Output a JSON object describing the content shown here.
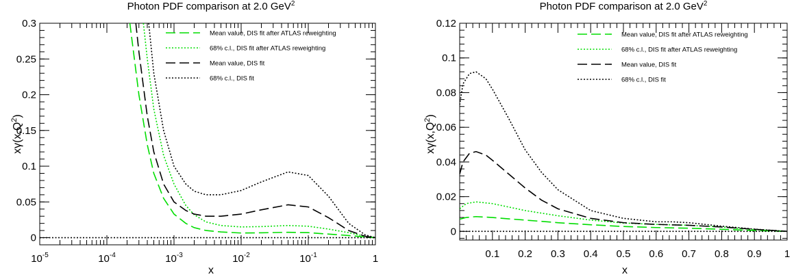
{
  "chart_data": [
    {
      "type": "line",
      "title": "Photon PDF comparison at 2.0 GeV",
      "title_superscript": "2",
      "xlabel": "x",
      "ylabel": "xγ(x,Q",
      "ylabel_superscript": "2",
      "ylabel_suffix": ")",
      "x_scale": "log",
      "xlim": [
        1e-05,
        1
      ],
      "ylim": [
        -0.01,
        0.3
      ],
      "x_ticks": [
        1e-05,
        0.0001,
        0.001,
        0.01,
        0.1,
        1
      ],
      "x_tick_base": [
        "10",
        "10",
        "10",
        "10",
        "10",
        "1"
      ],
      "x_tick_exp": [
        "-5",
        "-4",
        "-3",
        "-2",
        "-1",
        ""
      ],
      "y_ticks": [
        0,
        0.05,
        0.1,
        0.15,
        0.2,
        0.25,
        0.3
      ],
      "y_tick_labels": [
        "0",
        "0.05",
        "0.1",
        "0.15",
        "0.2",
        "0.25",
        "0.3"
      ],
      "grid": false,
      "legend_position": "top-right",
      "series": [
        {
          "name": "Mean value, DIS fit after ATLAS reweighting",
          "color": "#00dd00",
          "style": "long-dash",
          "x": [
            0.00022,
            0.0003,
            0.0004,
            0.0005,
            0.0007,
            0.001,
            0.0015,
            0.002,
            0.003,
            0.005,
            0.01,
            0.02,
            0.05,
            0.1,
            0.2,
            0.4,
            0.7,
            1
          ],
          "y": [
            0.3,
            0.2,
            0.13,
            0.09,
            0.055,
            0.033,
            0.02,
            0.014,
            0.01,
            0.008,
            0.0065,
            0.0068,
            0.0075,
            0.007,
            0.005,
            0.003,
            0.001,
            0
          ]
        },
        {
          "name": "68% c.l., DIS fit after ATLAS reweighting",
          "color": "#00dd00",
          "style": "dotted",
          "x": [
            0.00035,
            0.0004,
            0.0005,
            0.0007,
            0.001,
            0.0015,
            0.002,
            0.003,
            0.005,
            0.01,
            0.02,
            0.05,
            0.1,
            0.2,
            0.4,
            0.7,
            1
          ],
          "y": [
            0.3,
            0.25,
            0.18,
            0.115,
            0.075,
            0.045,
            0.032,
            0.022,
            0.017,
            0.015,
            0.0155,
            0.017,
            0.016,
            0.012,
            0.007,
            0.002,
            0
          ]
        },
        {
          "name": "Mean value, DIS fit",
          "color": "#000000",
          "style": "long-dash",
          "x": [
            0.00027,
            0.0003,
            0.0004,
            0.0005,
            0.0007,
            0.001,
            0.0015,
            0.002,
            0.003,
            0.005,
            0.01,
            0.02,
            0.05,
            0.1,
            0.2,
            0.4,
            0.7,
            1
          ],
          "y": [
            0.3,
            0.26,
            0.17,
            0.12,
            0.075,
            0.05,
            0.038,
            0.033,
            0.03,
            0.03,
            0.033,
            0.039,
            0.046,
            0.043,
            0.028,
            0.01,
            0.002,
            0
          ]
        },
        {
          "name": "68% c.l., DIS fit",
          "color": "#000000",
          "style": "dotted",
          "x": [
            0.00042,
            0.0005,
            0.0007,
            0.001,
            0.0015,
            0.002,
            0.003,
            0.005,
            0.01,
            0.02,
            0.05,
            0.1,
            0.2,
            0.4,
            0.7,
            1
          ],
          "y": [
            0.3,
            0.23,
            0.15,
            0.1,
            0.075,
            0.065,
            0.06,
            0.06,
            0.066,
            0.078,
            0.092,
            0.087,
            0.058,
            0.02,
            0.004,
            0
          ]
        },
        {
          "name": "",
          "color": "#000000",
          "style": "dotted",
          "x": [
            1e-05,
            1
          ],
          "y": [
            0,
            0
          ]
        }
      ]
    },
    {
      "type": "line",
      "title": "Photon PDF comparison at 2.0 GeV",
      "title_superscript": "2",
      "xlabel": "x",
      "ylabel": "xγ(x,Q",
      "ylabel_superscript": "2",
      "ylabel_suffix": ")",
      "x_scale": "linear",
      "xlim": [
        0,
        1
      ],
      "ylim": [
        -0.005,
        0.12
      ],
      "x_ticks": [
        0.1,
        0.2,
        0.3,
        0.4,
        0.5,
        0.6,
        0.7,
        0.8,
        0.9,
        1
      ],
      "x_tick_labels": [
        "0.1",
        "0.2",
        "0.3",
        "0.4",
        "0.5",
        "0.6",
        "0.7",
        "0.8",
        "0.9",
        "1"
      ],
      "y_ticks": [
        0,
        0.02,
        0.04,
        0.06,
        0.08,
        0.1,
        0.12
      ],
      "y_tick_labels": [
        "0",
        "0.02",
        "0.04",
        "0.06",
        "0.08",
        "0.1",
        "0.12"
      ],
      "grid": false,
      "legend_position": "top-right",
      "series": [
        {
          "name": "Mean value, DIS fit after ATLAS reweighting",
          "color": "#00dd00",
          "style": "long-dash",
          "x": [
            0.0,
            0.02,
            0.05,
            0.1,
            0.15,
            0.2,
            0.3,
            0.4,
            0.5,
            0.6,
            0.7,
            0.8,
            0.9,
            1.0
          ],
          "y": [
            0.007,
            0.008,
            0.0085,
            0.008,
            0.0072,
            0.0065,
            0.005,
            0.0038,
            0.0028,
            0.0022,
            0.0018,
            0.0012,
            0.0005,
            0
          ]
        },
        {
          "name": "68% c.l., DIS fit after ATLAS reweighting",
          "color": "#00dd00",
          "style": "dotted",
          "x": [
            0.0,
            0.02,
            0.05,
            0.1,
            0.15,
            0.2,
            0.3,
            0.4,
            0.5,
            0.6,
            0.7,
            0.8,
            0.9,
            1.0
          ],
          "y": [
            0.013,
            0.016,
            0.017,
            0.016,
            0.014,
            0.012,
            0.009,
            0.0065,
            0.0048,
            0.004,
            0.0035,
            0.0025,
            0.001,
            0
          ]
        },
        {
          "name": "Mean value, DIS fit",
          "color": "#000000",
          "style": "long-dash",
          "x": [
            0.0,
            0.01,
            0.03,
            0.05,
            0.08,
            0.1,
            0.15,
            0.2,
            0.25,
            0.3,
            0.4,
            0.5,
            0.6,
            0.7,
            0.8,
            0.9,
            1.0
          ],
          "y": [
            0.033,
            0.04,
            0.045,
            0.046,
            0.044,
            0.041,
            0.033,
            0.025,
            0.018,
            0.013,
            0.0075,
            0.005,
            0.004,
            0.0035,
            0.0025,
            0.0012,
            0
          ]
        },
        {
          "name": "68% c.l., DIS fit",
          "color": "#000000",
          "style": "dotted",
          "x": [
            0.0,
            0.01,
            0.03,
            0.05,
            0.08,
            0.1,
            0.15,
            0.2,
            0.25,
            0.3,
            0.4,
            0.5,
            0.6,
            0.65,
            0.7,
            0.8,
            0.9,
            1.0
          ],
          "y": [
            0.073,
            0.085,
            0.091,
            0.092,
            0.088,
            0.082,
            0.065,
            0.047,
            0.034,
            0.024,
            0.012,
            0.0075,
            0.0055,
            0.0055,
            0.005,
            0.003,
            0.0013,
            0
          ]
        },
        {
          "name": "",
          "color": "#000000",
          "style": "dotted",
          "x": [
            0,
            1
          ],
          "y": [
            0,
            0
          ]
        }
      ]
    }
  ]
}
